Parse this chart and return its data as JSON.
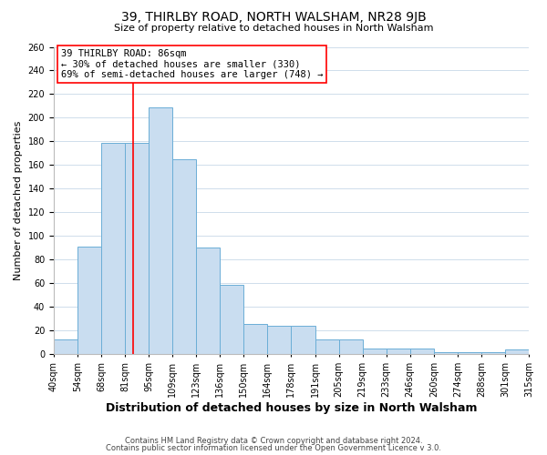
{
  "title": "39, THIRLBY ROAD, NORTH WALSHAM, NR28 9JB",
  "subtitle": "Size of property relative to detached houses in North Walsham",
  "xlabel": "Distribution of detached houses by size in North Walsham",
  "ylabel": "Number of detached properties",
  "bar_values": [
    13,
    91,
    179,
    179,
    209,
    165,
    90,
    59,
    26,
    24,
    24,
    13,
    13,
    5,
    5,
    5,
    2,
    2,
    2,
    4
  ],
  "bar_labels": [
    "40sqm",
    "54sqm",
    "68sqm",
    "81sqm",
    "95sqm",
    "109sqm",
    "123sqm",
    "136sqm",
    "150sqm",
    "164sqm",
    "178sqm",
    "191sqm",
    "205sqm",
    "219sqm",
    "233sqm",
    "246sqm",
    "260sqm",
    "274sqm",
    "288sqm",
    "301sqm",
    "315sqm"
  ],
  "bar_color": "#c9ddf0",
  "bar_edge_color": "#6baed6",
  "bar_edge_width": 0.7,
  "prop_size": 86,
  "bin_edges": [
    40,
    54,
    68,
    81,
    95,
    109,
    123,
    136,
    150,
    164,
    178,
    191,
    205,
    219,
    233,
    246,
    260,
    274,
    288,
    301,
    315
  ],
  "annotation_line1": "39 THIRLBY ROAD: 86sqm",
  "annotation_line2": "← 30% of detached houses are smaller (330)",
  "annotation_line3": "69% of semi-detached houses are larger (748) →",
  "ylim": [
    0,
    260
  ],
  "yticks": [
    0,
    20,
    40,
    60,
    80,
    100,
    120,
    140,
    160,
    180,
    200,
    220,
    240,
    260
  ],
  "footer_line1": "Contains HM Land Registry data © Crown copyright and database right 2024.",
  "footer_line2": "Contains public sector information licensed under the Open Government Licence v 3.0.",
  "background_color": "#ffffff",
  "grid_color": "#c8d8e8",
  "title_fontsize": 10,
  "subtitle_fontsize": 8,
  "xlabel_fontsize": 9,
  "ylabel_fontsize": 8,
  "tick_fontsize": 7,
  "annot_fontsize": 7.5,
  "footer_fontsize": 6
}
